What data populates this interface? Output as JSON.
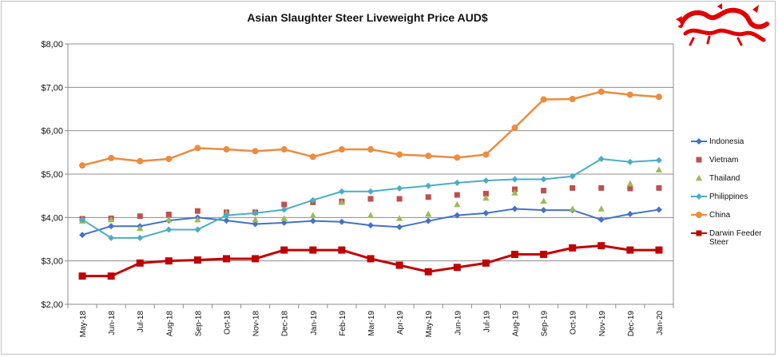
{
  "chart_data": {
    "type": "line",
    "title": "Asian Slaughter Steer Liveweight Price AUD$",
    "categories": [
      "May-18",
      "Jun-18",
      "Jul-18",
      "Aug-18",
      "Sep-18",
      "Oct-18",
      "Nov-18",
      "Dec-18",
      "Jan-19",
      "Feb-19",
      "Mar-19",
      "Apr-19",
      "May-19",
      "Jun-19",
      "Jul-19",
      "Aug-19",
      "Sep-19",
      "Oct-19",
      "Nov-19",
      "Dec-19",
      "Jan-20"
    ],
    "ylim": [
      2,
      8
    ],
    "yticks": [
      2,
      3,
      4,
      5,
      6,
      7,
      8
    ],
    "ytick_labels": [
      "$2,00",
      "$3,00",
      "$4,00",
      "$5,00",
      "$6,00",
      "$7,00",
      "$8,00"
    ],
    "grid": true,
    "legend": "right",
    "series": [
      {
        "name": "Indonesia",
        "color": "#4472c4",
        "marker": "diamond",
        "line": true,
        "values": [
          3.6,
          3.8,
          3.8,
          3.93,
          4.0,
          3.93,
          3.85,
          3.88,
          3.92,
          3.9,
          3.82,
          3.78,
          3.92,
          4.05,
          4.1,
          4.2,
          4.17,
          4.17,
          3.95,
          4.08,
          4.18
        ]
      },
      {
        "name": "Vietnam",
        "color": "#c0504d",
        "marker": "square",
        "line": false,
        "values": [
          3.97,
          3.98,
          4.03,
          4.07,
          4.15,
          4.12,
          4.12,
          4.3,
          4.35,
          4.37,
          4.43,
          4.43,
          4.47,
          4.52,
          4.55,
          4.65,
          4.62,
          4.68,
          4.68,
          4.67,
          4.68
        ]
      },
      {
        "name": "Thailand",
        "color": "#9bbb59",
        "marker": "triangle",
        "line": false,
        "values": [
          3.92,
          3.95,
          3.75,
          3.95,
          3.95,
          4.1,
          3.95,
          3.98,
          4.05,
          4.35,
          4.05,
          3.98,
          4.08,
          4.3,
          4.45,
          4.57,
          4.38,
          4.2,
          4.2,
          4.78,
          5.1
        ]
      },
      {
        "name": "Philippines",
        "color": "#4bacc6",
        "marker": "diamond",
        "line": true,
        "values": [
          3.95,
          3.53,
          3.53,
          3.72,
          3.72,
          4.05,
          4.1,
          4.18,
          4.4,
          4.6,
          4.6,
          4.67,
          4.73,
          4.8,
          4.85,
          4.88,
          4.88,
          4.95,
          5.35,
          5.28,
          5.32
        ]
      },
      {
        "name": "China",
        "color": "#ed8b3e",
        "marker": "circle",
        "line": true,
        "values": [
          5.2,
          5.37,
          5.3,
          5.35,
          5.6,
          5.57,
          5.53,
          5.57,
          5.4,
          5.57,
          5.57,
          5.45,
          5.42,
          5.38,
          5.45,
          6.07,
          6.72,
          6.73,
          6.9,
          6.83,
          6.78
        ]
      },
      {
        "name": "Darwin Feeder Steer",
        "color": "#c00000",
        "marker": "square",
        "line": true,
        "values": [
          2.65,
          2.65,
          2.95,
          3.0,
          3.02,
          3.05,
          3.05,
          3.25,
          3.25,
          3.25,
          3.05,
          2.9,
          2.75,
          2.85,
          2.95,
          3.15,
          3.15,
          3.3,
          3.35,
          3.25,
          3.25
        ]
      }
    ]
  }
}
